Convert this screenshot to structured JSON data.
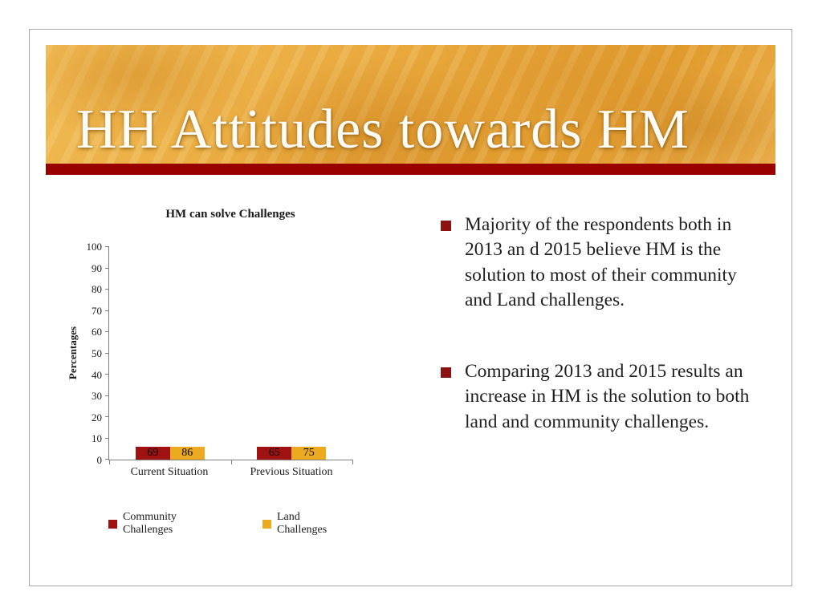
{
  "slide": {
    "title": "HH Attitudes towards HM"
  },
  "bullets": [
    {
      "text": "Majority of the respondents both in 2013 an d 2015 believe HM is the solution to most of their community and Land challenges."
    },
    {
      "text": "Comparing 2013 and 2015 results an increase in HM is the solution to both land and community challenges."
    }
  ],
  "chart_data": {
    "type": "bar",
    "title": "HM can solve Challenges",
    "categories": [
      "Current Situation",
      "Previous Situation"
    ],
    "series": [
      {
        "name": "Community Challenges",
        "color": "#a01212",
        "values": [
          69,
          65
        ]
      },
      {
        "name": "Land Challenges",
        "color": "#ecaa21",
        "values": [
          86,
          75
        ]
      }
    ],
    "ylabel": "Percentages",
    "ylim": [
      0,
      100
    ],
    "ytick_step": 10,
    "grid": false,
    "legend_position": "bottom"
  },
  "colors": {
    "banner_gold": "#e8a73b",
    "rule_red": "#990000",
    "bullet_red": "#8c1111",
    "title_text": "#fdfcf6"
  }
}
